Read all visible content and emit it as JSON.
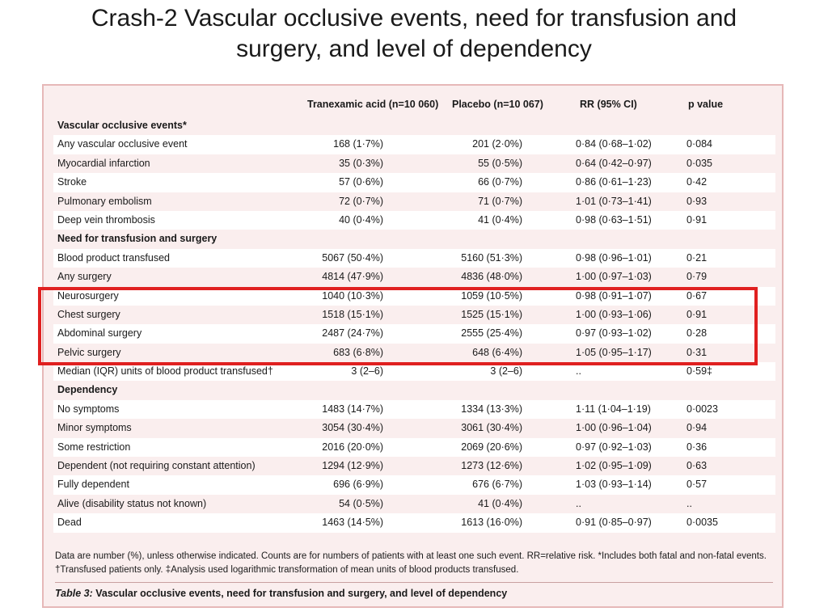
{
  "slide": {
    "title_line1": "Crash-2 Vascular occlusive events, need for transfusion and",
    "title_line2": "surgery, and level of dependency"
  },
  "table": {
    "headers": [
      "",
      "Tranexamic acid (n=10 060)",
      "Placebo (n=10 067)",
      "RR (95% CI)",
      "p value"
    ],
    "sections": [
      {
        "title": "Vascular occlusive events*",
        "rows": [
          [
            "Any vascular occlusive event",
            "168 (1·7%)",
            "201 (2·0%)",
            "0·84 (0·68–1·02)",
            "0·084"
          ],
          [
            "Myocardial infarction",
            "35 (0·3%)",
            "55 (0·5%)",
            "0·64 (0·42–0·97)",
            "0·035"
          ],
          [
            "Stroke",
            "57 (0·6%)",
            "66 (0·7%)",
            "0·86 (0·61–1·23)",
            "0·42"
          ],
          [
            "Pulmonary embolism",
            "72 (0·7%)",
            "71 (0·7%)",
            "1·01 (0·73–1·41)",
            "0·93"
          ],
          [
            "Deep vein thrombosis",
            "40 (0·4%)",
            "41 (0·4%)",
            "0·98 (0·63–1·51)",
            "0·91"
          ]
        ]
      },
      {
        "title": "Need for transfusion and surgery",
        "rows": [
          [
            "Blood product transfused",
            "5067 (50·4%)",
            "5160 (51·3%)",
            "0·98 (0·96–1·01)",
            "0·21"
          ],
          [
            "Any surgery",
            "4814 (47·9%)",
            "4836 (48·0%)",
            "1·00 (0·97–1·03)",
            "0·79"
          ],
          [
            "Neurosurgery",
            "1040 (10·3%)",
            "1059 (10·5%)",
            "0·98 (0·91–1·07)",
            "0·67"
          ],
          [
            "Chest surgery",
            "1518 (15·1%)",
            "1525 (15·1%)",
            "1·00 (0·93–1·06)",
            "0·91"
          ],
          [
            "Abdominal surgery",
            "2487 (24·7%)",
            "2555 (25·4%)",
            "0·97 (0·93–1·02)",
            "0·28"
          ],
          [
            "Pelvic surgery",
            "683 (6·8%)",
            "648 (6·4%)",
            "1·05 (0·95–1·17)",
            "0·31"
          ],
          [
            "Median (IQR) units of blood product transfused†",
            "3 (2–6)",
            "3 (2–6)",
            "..",
            "0·59‡"
          ]
        ]
      },
      {
        "title": "Dependency",
        "rows": [
          [
            "No symptoms",
            "1483 (14·7%)",
            "1334 (13·3%)",
            "1·11 (1·04–1·19)",
            "0·0023"
          ],
          [
            "Minor symptoms",
            "3054 (30·4%)",
            "3061 (30·4%)",
            "1·00 (0·96–1·04)",
            "0·94"
          ],
          [
            "Some restriction",
            "2016 (20·0%)",
            "2069 (20·6%)",
            "0·97 (0·92–1·03)",
            "0·36"
          ],
          [
            "Dependent (not requiring constant attention)",
            "1294 (12·9%)",
            "1273 (12·6%)",
            "1·02 (0·95–1·09)",
            "0·63"
          ],
          [
            "Fully dependent",
            "696 (6·9%)",
            "676 (6·7%)",
            "1·03 (0·93–1·14)",
            "0·57"
          ],
          [
            "Alive (disability status not known)",
            "54 (0·5%)",
            "41 (0·4%)",
            "..",
            ".."
          ],
          [
            "Dead",
            "1463 (14·5%)",
            "1613 (16·0%)",
            "0·91 (0·85–0·97)",
            "0·0035"
          ]
        ]
      }
    ],
    "footnote_line1": "Data are number (%), unless otherwise indicated. Counts are for numbers of patients with at least one such event. RR=relative risk. *Includes both fatal and non-fatal events.",
    "footnote_line2": "†Transfused patients only. ‡Analysis used logarithmic transformation of mean units of blood products transfused.",
    "caption_label": "Table 3:",
    "caption_text": " Vascular occlusive events, need for transfusion and surgery, and level of dependency"
  },
  "colors": {
    "highlight": "#e02020",
    "panel_background": "#faeeee",
    "panel_border": "#e6b8b8"
  }
}
